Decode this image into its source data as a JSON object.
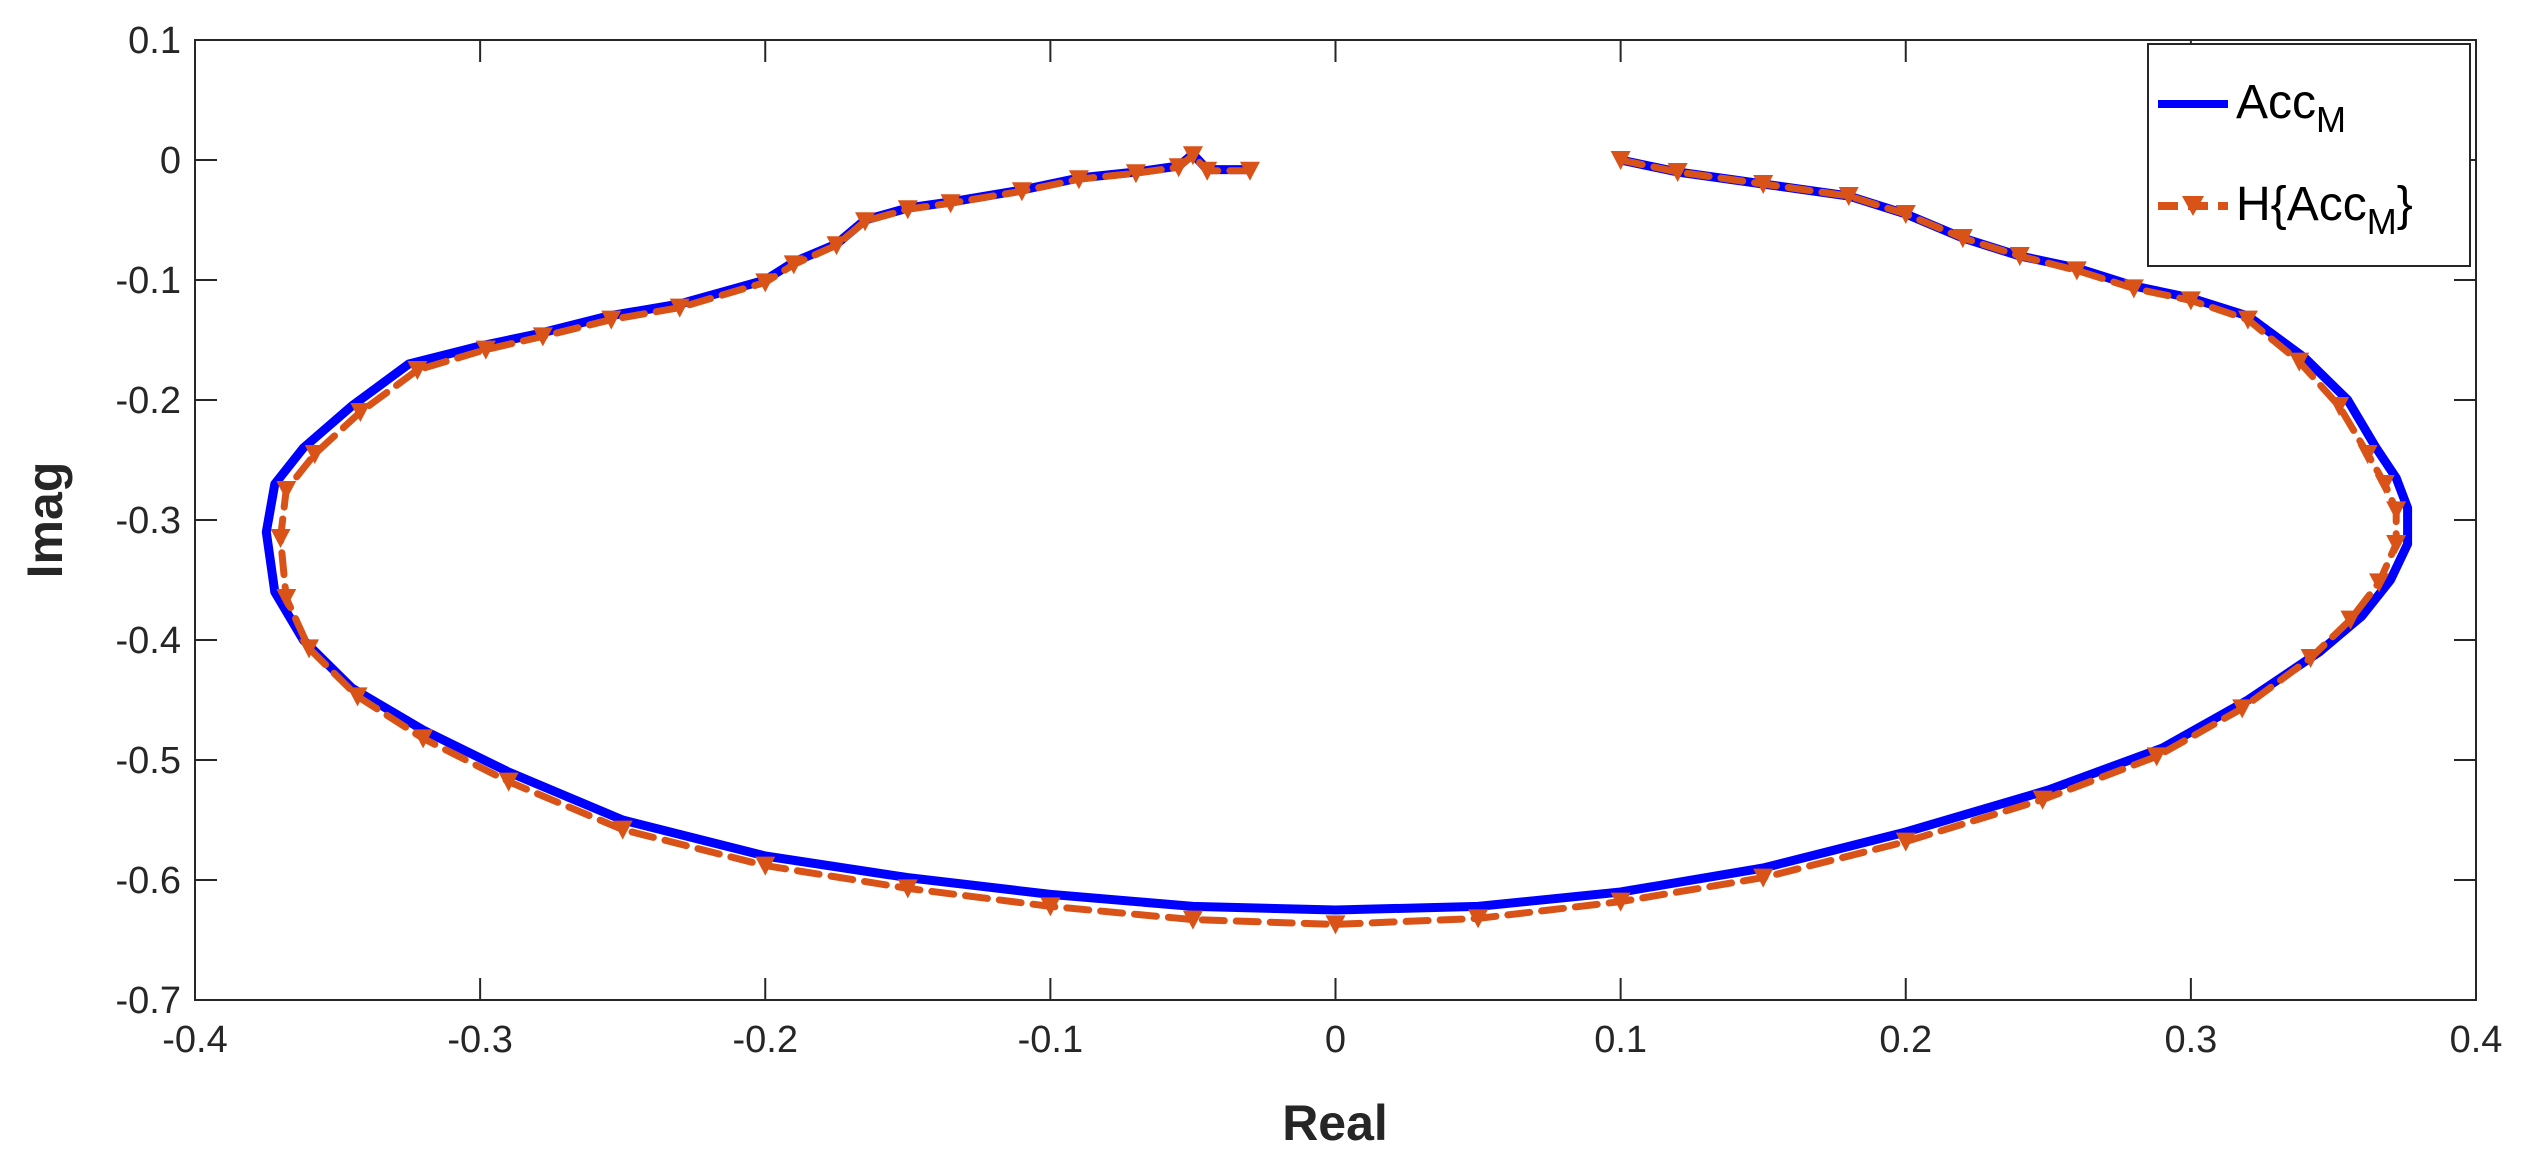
{
  "chart_data": {
    "type": "line",
    "xlabel": "Real",
    "ylabel": "Imag",
    "xlim": [
      -0.4,
      0.4
    ],
    "ylim": [
      -0.7,
      0.1
    ],
    "xticks": [
      "-0.4",
      "-0.3",
      "-0.2",
      "-0.1",
      "0",
      "0.1",
      "0.2",
      "0.3",
      "0.4"
    ],
    "yticks": [
      "0.1",
      "0",
      "-0.1",
      "-0.2",
      "-0.3",
      "-0.4",
      "-0.5",
      "-0.6",
      "-0.7"
    ],
    "grid": false,
    "legend_position": "top-right",
    "series": [
      {
        "name": "Acc",
        "name_subscript": "M",
        "color": "#0000ff",
        "style": "solid",
        "x": [
          0.1,
          0.12,
          0.15,
          0.18,
          0.2,
          0.22,
          0.24,
          0.26,
          0.28,
          0.3,
          0.32,
          0.34,
          0.355,
          0.365,
          0.372,
          0.376,
          0.376,
          0.37,
          0.36,
          0.345,
          0.32,
          0.29,
          0.25,
          0.2,
          0.15,
          0.1,
          0.05,
          0.0,
          -0.05,
          -0.1,
          -0.15,
          -0.2,
          -0.25,
          -0.29,
          -0.32,
          -0.345,
          -0.362,
          -0.372,
          -0.375,
          -0.372,
          -0.362,
          -0.345,
          -0.325,
          -0.3,
          -0.28,
          -0.255,
          -0.23,
          -0.2,
          -0.19,
          -0.175,
          -0.165,
          -0.15,
          -0.135,
          -0.11,
          -0.09,
          -0.07,
          -0.055,
          -0.05,
          -0.045,
          -0.03
        ],
        "y": [
          0.0,
          -0.01,
          -0.02,
          -0.03,
          -0.045,
          -0.065,
          -0.08,
          -0.09,
          -0.105,
          -0.115,
          -0.13,
          -0.165,
          -0.2,
          -0.24,
          -0.265,
          -0.29,
          -0.32,
          -0.35,
          -0.38,
          -0.41,
          -0.45,
          -0.49,
          -0.525,
          -0.56,
          -0.59,
          -0.61,
          -0.622,
          -0.625,
          -0.622,
          -0.612,
          -0.598,
          -0.58,
          -0.55,
          -0.51,
          -0.475,
          -0.44,
          -0.4,
          -0.36,
          -0.31,
          -0.27,
          -0.24,
          -0.205,
          -0.17,
          -0.155,
          -0.145,
          -0.13,
          -0.12,
          -0.1,
          -0.085,
          -0.07,
          -0.05,
          -0.04,
          -0.035,
          -0.025,
          -0.015,
          -0.01,
          -0.005,
          0.005,
          -0.008,
          -0.008
        ]
      },
      {
        "name": "H{Acc",
        "name_subscript": "M",
        "name_suffix": "}",
        "color": "#d95319",
        "style": "dashed",
        "marker": "triangle-down",
        "x": [
          0.1,
          0.12,
          0.15,
          0.18,
          0.2,
          0.22,
          0.24,
          0.26,
          0.28,
          0.3,
          0.32,
          0.338,
          0.352,
          0.362,
          0.368,
          0.372,
          0.372,
          0.366,
          0.356,
          0.342,
          0.318,
          0.288,
          0.248,
          0.2,
          0.15,
          0.1,
          0.05,
          0.0,
          -0.05,
          -0.1,
          -0.15,
          -0.2,
          -0.25,
          -0.29,
          -0.32,
          -0.343,
          -0.36,
          -0.368,
          -0.37,
          -0.368,
          -0.358,
          -0.342,
          -0.322,
          -0.298,
          -0.278,
          -0.254,
          -0.23,
          -0.2,
          -0.19,
          -0.175,
          -0.165,
          -0.15,
          -0.135,
          -0.11,
          -0.09,
          -0.07,
          -0.055,
          -0.05,
          -0.045,
          -0.03
        ],
        "y": [
          0.0,
          -0.01,
          -0.02,
          -0.03,
          -0.045,
          -0.065,
          -0.08,
          -0.092,
          -0.107,
          -0.117,
          -0.133,
          -0.168,
          -0.205,
          -0.245,
          -0.27,
          -0.292,
          -0.32,
          -0.352,
          -0.383,
          -0.415,
          -0.457,
          -0.497,
          -0.533,
          -0.568,
          -0.598,
          -0.618,
          -0.632,
          -0.637,
          -0.633,
          -0.622,
          -0.607,
          -0.588,
          -0.558,
          -0.518,
          -0.482,
          -0.447,
          -0.407,
          -0.365,
          -0.315,
          -0.275,
          -0.245,
          -0.21,
          -0.175,
          -0.158,
          -0.147,
          -0.133,
          -0.123,
          -0.102,
          -0.087,
          -0.071,
          -0.051,
          -0.041,
          -0.036,
          -0.026,
          -0.016,
          -0.011,
          -0.006,
          0.004,
          -0.009,
          -0.009
        ]
      }
    ]
  }
}
